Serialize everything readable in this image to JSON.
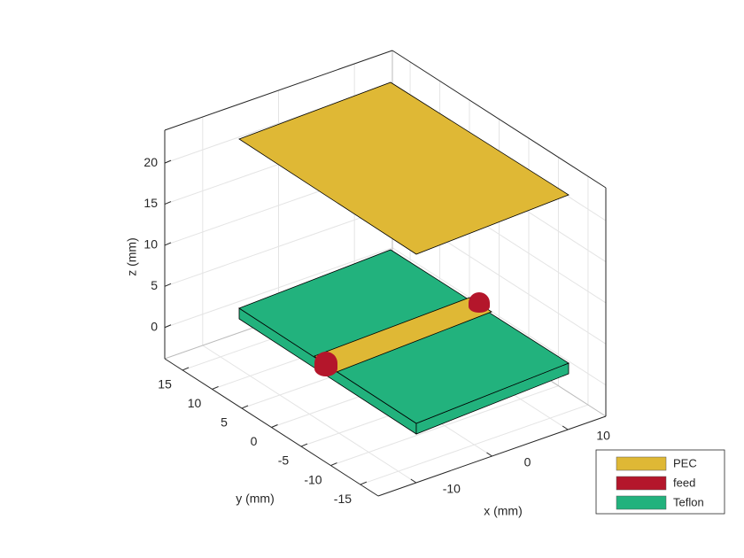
{
  "chart_data": {
    "type": "3d-geometry",
    "xlabel": "x (mm)",
    "ylabel": "y (mm)",
    "zlabel": "z (mm)",
    "xlim": [
      -15,
      15
    ],
    "ylim": [
      -18,
      18
    ],
    "zlim": [
      -3.8,
      24
    ],
    "xticks": [
      -10,
      0,
      10
    ],
    "yticks": [
      -15,
      -10,
      -5,
      0,
      5,
      10,
      15
    ],
    "zticks": [
      0,
      5,
      10,
      15,
      20
    ],
    "grid": true,
    "legend_location": "southeast outside",
    "series": [
      {
        "name": "PEC",
        "color": "#dfb835"
      },
      {
        "name": "feed",
        "color": "#b4162b"
      },
      {
        "name": "Teflon",
        "color": "#22b27d"
      }
    ]
  }
}
